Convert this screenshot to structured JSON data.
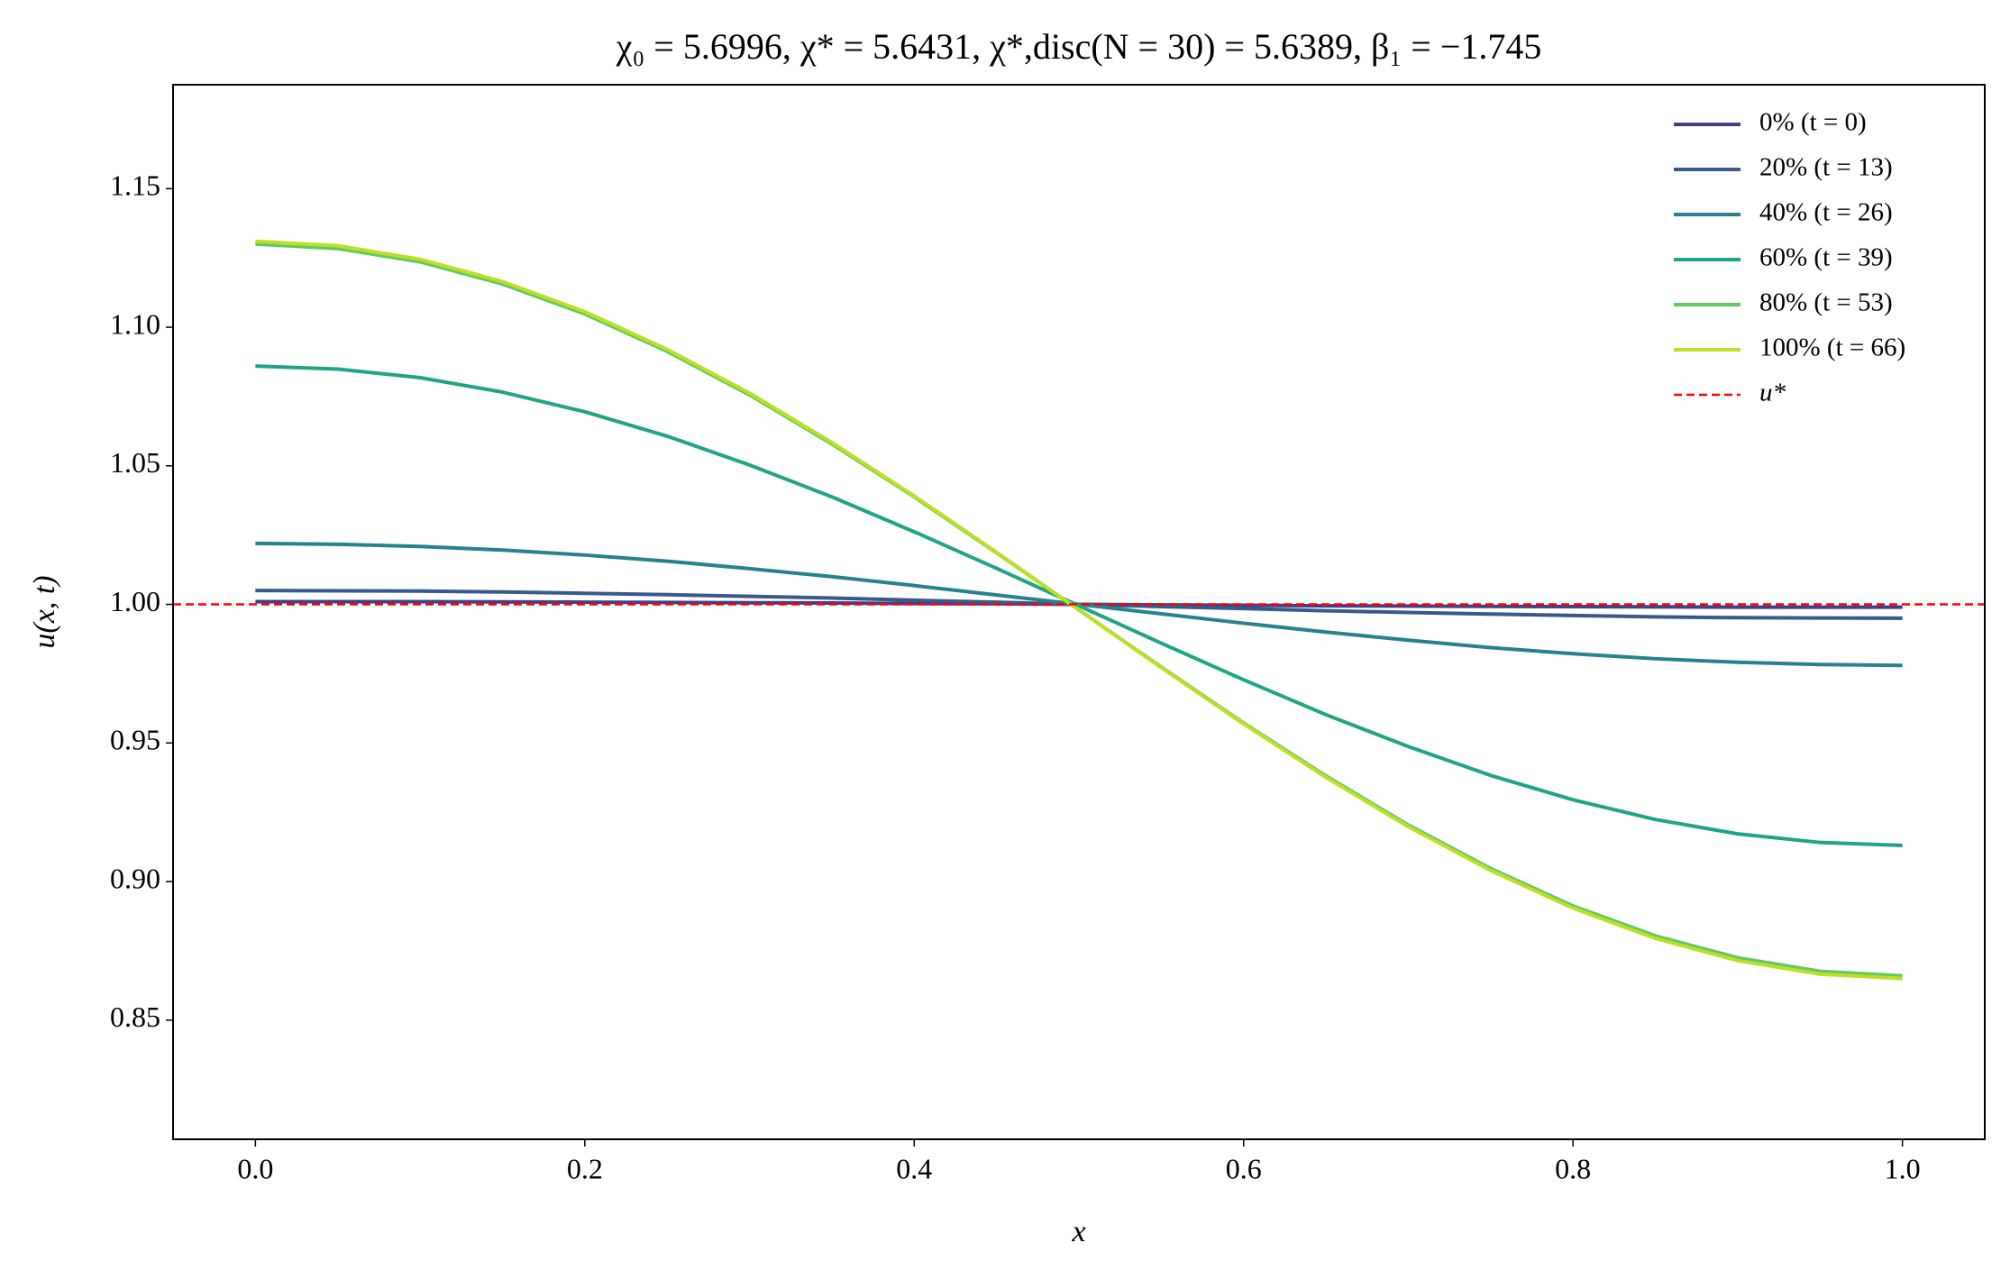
{
  "chart_data": {
    "type": "line",
    "title": "χ₀ = 5.6996,  χ* = 5.6431,  χ*,disc(N = 30) = 5.6389,  β₁ = −1.745",
    "xlabel": "x",
    "ylabel": "u(x, t)",
    "x": [
      0,
      0.05,
      0.1,
      0.15,
      0.2,
      0.25,
      0.3,
      0.35,
      0.4,
      0.45,
      0.5,
      0.55,
      0.6,
      0.65,
      0.7,
      0.75,
      0.8,
      0.85,
      0.9,
      0.95,
      1
    ],
    "series": [
      {
        "name": "0% (t = 0)",
        "color": "#433e85",
        "values": [
          1.001,
          1.001,
          1.001,
          1.0009,
          1.0008,
          1.0007,
          1.0006,
          1.0005,
          1.0003,
          1.0002,
          1.0,
          0.9998,
          0.9997,
          0.9995,
          0.9994,
          0.9993,
          0.9992,
          0.9991,
          0.999,
          0.999,
          0.999
        ]
      },
      {
        "name": "20% (t = 13)",
        "color": "#38598c",
        "values": [
          1.005,
          1.0049,
          1.0048,
          1.0045,
          1.004,
          1.0035,
          1.0029,
          1.0023,
          1.0015,
          1.0008,
          1.0,
          0.9992,
          0.9985,
          0.9977,
          0.9971,
          0.9965,
          0.996,
          0.9955,
          0.9952,
          0.9951,
          0.995
        ]
      },
      {
        "name": "40% (t = 26)",
        "color": "#26828e",
        "values": [
          1.022,
          1.0217,
          1.0209,
          1.0196,
          1.0178,
          1.0156,
          1.0129,
          1.01,
          1.0068,
          1.0034,
          1.0,
          0.9966,
          0.9932,
          0.99,
          0.9871,
          0.9844,
          0.9822,
          0.9804,
          0.9791,
          0.9783,
          0.978
        ]
      },
      {
        "name": "60% (t = 39)",
        "color": "#20a486",
        "values": [
          1.086,
          1.0849,
          1.0818,
          1.0766,
          1.0695,
          1.0607,
          1.0503,
          1.0388,
          1.0262,
          1.013,
          0.9995,
          0.986,
          0.9728,
          0.9602,
          0.9487,
          0.9383,
          0.9295,
          0.9224,
          0.9172,
          0.9141,
          0.913
        ]
      },
      {
        "name": "80% (t = 53)",
        "color": "#5ec962",
        "values": [
          1.13,
          1.1284,
          1.1236,
          1.1156,
          1.1048,
          1.0913,
          1.0756,
          1.0579,
          1.0388,
          1.0186,
          0.998,
          0.9774,
          0.9572,
          0.9381,
          0.9204,
          0.9047,
          0.8912,
          0.8804,
          0.8725,
          0.8676,
          0.866
        ]
      },
      {
        "name": "100% (t = 66)",
        "color": "#bddf26",
        "values": [
          1.131,
          1.1294,
          1.1245,
          1.1165,
          1.1056,
          1.092,
          1.0762,
          1.0584,
          1.0391,
          1.0188,
          0.998,
          0.9772,
          0.9569,
          0.9376,
          0.9198,
          0.904,
          0.8904,
          0.8795,
          0.8715,
          0.8666,
          0.865
        ]
      }
    ],
    "hline": {
      "name": "u*",
      "y": 1.0,
      "color": "#ff0000",
      "style": "dashed"
    },
    "xlim": [
      -0.05,
      1.05
    ],
    "ylim": [
      0.807,
      1.1875
    ],
    "xticks": [
      {
        "value": 0,
        "label": "0.0"
      },
      0.2,
      0.4,
      0.6,
      0.8,
      {
        "value": 1,
        "label": "1.0"
      }
    ],
    "yticks": [
      0.85,
      {
        "value": 0.9,
        "label": "0.90"
      },
      0.95,
      {
        "value": 1,
        "label": "1.00"
      },
      1.05,
      {
        "value": 1.1,
        "label": "1.10"
      },
      1.15
    ],
    "grid": false,
    "legend": "upper right"
  }
}
